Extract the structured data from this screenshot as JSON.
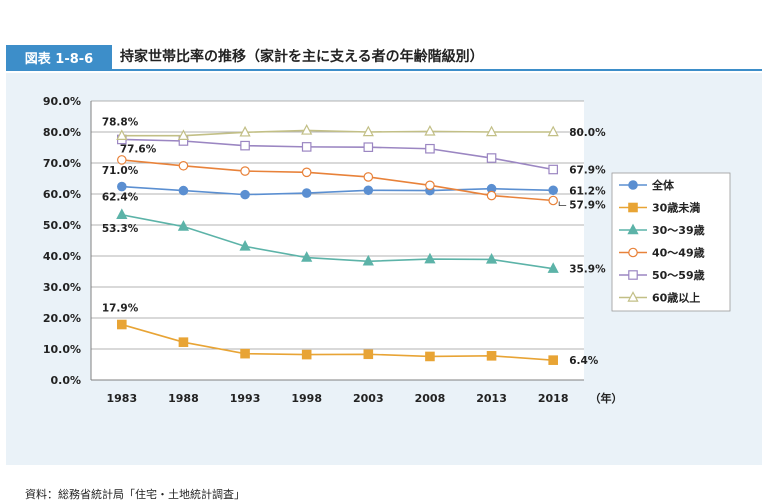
{
  "figure": {
    "badge": "図表 1-8-6",
    "title": "持家世帯比率の推移（家計を主に支える者の年齢階級別）",
    "source": "資料：総務省統計局「住宅・土地統計調査」",
    "x_unit": "（年）"
  },
  "chart_data": {
    "type": "line",
    "title": "持家世帯比率の推移（家計を主に支える者の年齢階級別）",
    "x": [
      1983,
      1988,
      1993,
      1998,
      2003,
      2008,
      2013,
      2018
    ],
    "xlabel": "（年）",
    "ylabel": "",
    "ylim": [
      0,
      90
    ],
    "yticks": [
      "0.0%",
      "10.0%",
      "20.0%",
      "30.0%",
      "40.0%",
      "50.0%",
      "60.0%",
      "70.0%",
      "80.0%",
      "90.0%"
    ],
    "grid": true,
    "legend": "right",
    "series": [
      {
        "name": "全体",
        "color": "#5b8fd1",
        "marker": "circle",
        "fill": "#5b8fd1",
        "values": [
          62.4,
          61.1,
          59.8,
          60.3,
          61.2,
          61.1,
          61.7,
          61.2
        ]
      },
      {
        "name": "30歳未満",
        "color": "#e8a435",
        "marker": "square",
        "fill": "#e8a435",
        "values": [
          17.9,
          12.2,
          8.5,
          8.2,
          8.3,
          7.6,
          7.8,
          6.4
        ]
      },
      {
        "name": "30～39歳",
        "color": "#5cb3a8",
        "marker": "triangle",
        "fill": "#5cb3a8",
        "values": [
          53.3,
          49.5,
          43.1,
          39.5,
          38.3,
          39.0,
          38.9,
          35.9
        ]
      },
      {
        "name": "40～49歳",
        "color": "#e8823a",
        "marker": "circle",
        "fill": "#ffffff",
        "values": [
          71.0,
          69.1,
          67.4,
          67.0,
          65.5,
          62.8,
          59.5,
          57.9
        ]
      },
      {
        "name": "50～59歳",
        "color": "#9b86c2",
        "marker": "square",
        "fill": "#ffffff",
        "values": [
          77.6,
          77.1,
          75.6,
          75.2,
          75.1,
          74.6,
          71.6,
          67.9
        ]
      },
      {
        "name": "60歳以上",
        "color": "#c2bf86",
        "marker": "triangle",
        "fill": "#ffffff",
        "values": [
          78.8,
          78.8,
          79.9,
          80.5,
          80.0,
          80.2,
          80.0,
          80.0
        ]
      }
    ],
    "annotations": [
      {
        "series": "60歳以上",
        "x": 1983,
        "text": "78.8%"
      },
      {
        "series": "50～59歳",
        "x": 1983,
        "text": "77.6%"
      },
      {
        "series": "40～49歳",
        "x": 1983,
        "text": "71.0%"
      },
      {
        "series": "全体",
        "x": 1983,
        "text": "62.4%"
      },
      {
        "series": "30～39歳",
        "x": 1983,
        "text": "53.3%"
      },
      {
        "series": "30歳未満",
        "x": 1983,
        "text": "17.9%"
      },
      {
        "series": "60歳以上",
        "x": 2018,
        "text": "80.0%"
      },
      {
        "series": "50～59歳",
        "x": 2018,
        "text": "67.9%"
      },
      {
        "series": "全体",
        "x": 2018,
        "text": "61.2%"
      },
      {
        "series": "40～49歳",
        "x": 2018,
        "text": "57.9%"
      },
      {
        "series": "30～39歳",
        "x": 2018,
        "text": "35.9%"
      },
      {
        "series": "30歳未満",
        "x": 2018,
        "text": "6.4%"
      }
    ]
  }
}
